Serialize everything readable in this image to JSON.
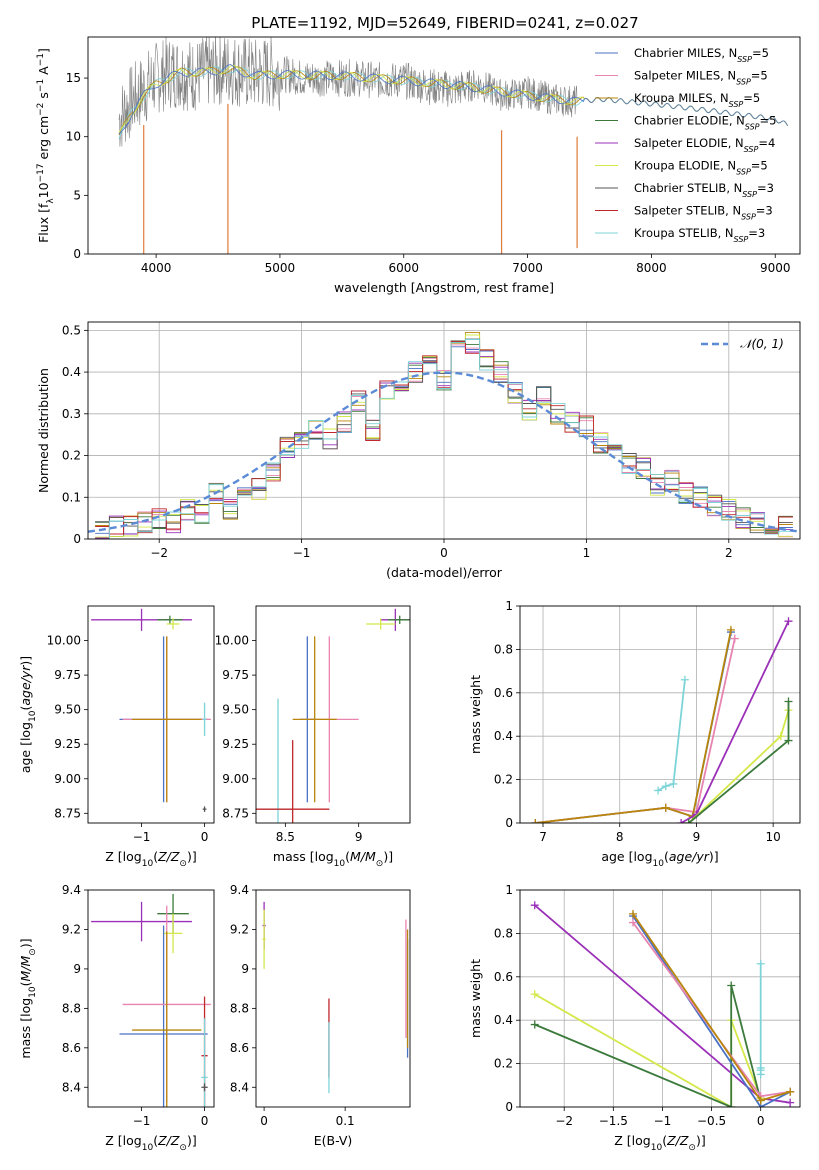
{
  "figure": {
    "title": "PLATE=1192, MJD=52649, FIBERID=0241, z=0.027"
  },
  "series_styles": [
    {
      "name": "Chabrier MILES, N$_{SSP}$=5",
      "label": "Chabrier MILES, N",
      "sub": "SSP",
      "tail": "=5",
      "color": "#4a72c4"
    },
    {
      "name": "Salpeter MILES, N$_{SSP}$=5",
      "label": "Salpeter MILES, N",
      "sub": "SSP",
      "tail": "=5",
      "color": "#e884b0"
    },
    {
      "name": "Kroupa MILES, N$_{SSP}$=5",
      "label": "Kroupa MILES, N",
      "sub": "SSP",
      "tail": "=5",
      "color": "#b8860b"
    },
    {
      "name": "Chabrier ELODIE, N$_{SSP}$=5",
      "label": "Chabrier ELODIE, N",
      "sub": "SSP",
      "tail": "=5",
      "color": "#3b7a3b"
    },
    {
      "name": "Salpeter ELODIE, N$_{SSP}$=4",
      "label": "Salpeter ELODIE, N",
      "sub": "SSP",
      "tail": "=4",
      "color": "#9b30b8"
    },
    {
      "name": "Kroupa ELODIE, N$_{SSP}$=5",
      "label": "Kroupa ELODIE, N",
      "sub": "SSP",
      "tail": "=5",
      "color": "#d4e84a"
    },
    {
      "name": "Chabrier STELIB, N$_{SSP}$=3",
      "label": "Chabrier STELIB, N",
      "sub": "SSP",
      "tail": "=3",
      "color": "#555555"
    },
    {
      "name": "Salpeter STELIB, N$_{SSP}$=3",
      "label": "Salpeter STELIB, N",
      "sub": "SSP",
      "tail": "=3",
      "color": "#c0282d"
    },
    {
      "name": "Kroupa STELIB, N$_{SSP}$=3",
      "label": "Kroupa STELIB, N",
      "sub": "SSP",
      "tail": "=3",
      "color": "#7dd4d8"
    }
  ],
  "chart_data": [
    {
      "id": "spectrum",
      "type": "line",
      "xlabel": "wavelength [Angstrom, rest frame]",
      "ylabel": "Flux [f$_\\lambda$10$^{-17}$ erg cm$^{-2}$ s$^{-1}$ A$^{-1}$]",
      "xlim": [
        3450,
        9200
      ],
      "ylim": [
        0,
        18.5
      ],
      "xticks": [
        4000,
        5000,
        6000,
        7000,
        8000,
        9000
      ],
      "yticks": [
        0,
        5,
        10,
        15
      ],
      "data_series": {
        "name": "data",
        "color": "#808080",
        "x": [
          3700,
          3800,
          3900,
          4000,
          4100,
          4200,
          4300,
          4400,
          4500,
          4600,
          4700,
          4800,
          4900,
          5000,
          5200,
          5400,
          5600,
          5800,
          6000,
          6200,
          6400,
          6600,
          6800,
          7000,
          7200,
          7400
        ],
        "y": [
          11.5,
          13,
          14,
          15,
          15.5,
          15.5,
          15.2,
          15.5,
          15.8,
          15.8,
          15.5,
          15.3,
          15.5,
          15.4,
          15,
          15,
          15,
          14.8,
          14.8,
          14.3,
          14,
          14.5,
          13.5,
          13.8,
          13.2,
          13
        ]
      },
      "model_series": {
        "name": "models",
        "color": "#7dd4d8",
        "x": [
          3700,
          3800,
          3900,
          4000,
          4200,
          4400,
          4600,
          4800,
          5000,
          5500,
          6000,
          6500,
          7000,
          7400,
          7600,
          8000,
          8500,
          9000,
          9100
        ],
        "y": [
          10,
          12,
          13.5,
          14.5,
          15.5,
          15.5,
          15.8,
          15.2,
          15.3,
          15.2,
          14.8,
          14.3,
          13.5,
          13.0,
          13.2,
          12.8,
          12.2,
          11.5,
          11.0
        ]
      },
      "dips": [
        {
          "x": 3900,
          "y": 0
        },
        {
          "x": 4580,
          "y": 0
        },
        {
          "x": 6790,
          "y": 0
        },
        {
          "x": 7400,
          "y": 0.5
        }
      ],
      "legend": "upper right"
    },
    {
      "id": "residuals",
      "type": "line",
      "xlabel": "(data-model)/error",
      "ylabel": "Normed distribution",
      "xlim": [
        -2.5,
        2.5
      ],
      "ylim": [
        0,
        0.52
      ],
      "xticks": [
        -2,
        -1,
        0,
        1,
        2
      ],
      "yticks": [
        0.0,
        0.1,
        0.2,
        0.3,
        0.4,
        0.5
      ],
      "grid": true,
      "gaussian": {
        "name": "$\\mathcal{N}(0, 1)$",
        "label": "𝒩(0, 1)",
        "color": "#5b8bd6",
        "style": "dashed"
      },
      "hist_bin_centers": [
        -2.4,
        -2.3,
        -2.2,
        -2.1,
        -2.0,
        -1.9,
        -1.8,
        -1.7,
        -1.6,
        -1.5,
        -1.4,
        -1.3,
        -1.2,
        -1.1,
        -1.0,
        -0.9,
        -0.8,
        -0.7,
        -0.6,
        -0.5,
        -0.4,
        -0.3,
        -0.2,
        -0.1,
        0.0,
        0.1,
        0.2,
        0.3,
        0.4,
        0.5,
        0.6,
        0.7,
        0.8,
        0.9,
        1.0,
        1.1,
        1.2,
        1.3,
        1.4,
        1.5,
        1.6,
        1.7,
        1.8,
        1.9,
        2.0,
        2.1,
        2.2,
        2.3,
        2.4
      ],
      "hist_values": [
        0.02,
        0.03,
        0.03,
        0.04,
        0.05,
        0.04,
        0.07,
        0.06,
        0.11,
        0.07,
        0.13,
        0.12,
        0.16,
        0.22,
        0.23,
        0.26,
        0.24,
        0.28,
        0.33,
        0.26,
        0.36,
        0.38,
        0.4,
        0.43,
        0.38,
        0.45,
        0.47,
        0.43,
        0.4,
        0.35,
        0.31,
        0.34,
        0.3,
        0.28,
        0.27,
        0.23,
        0.21,
        0.18,
        0.17,
        0.13,
        0.14,
        0.11,
        0.1,
        0.08,
        0.07,
        0.05,
        0.04,
        0.03,
        0.03
      ],
      "legend": "upper right"
    },
    {
      "id": "age-vs-Z",
      "type": "scatter",
      "xlabel": "Z [log$_{10}$($Z/Z_\\odot$)]",
      "ylabel": "age  [log$_{10}$($age/yr$)]",
      "xlim": [
        -1.85,
        0.15
      ],
      "ylim": [
        8.68,
        10.25
      ],
      "xticks": [
        -1,
        0
      ],
      "yticks": [
        8.75,
        9.0,
        9.25,
        9.5,
        9.75,
        10.0
      ],
      "ytick_labels": [
        "8.75",
        "9.00",
        "9.25",
        "9.50",
        "9.75",
        "10.00"
      ],
      "points": [
        {
          "series": 4,
          "x": -1.0,
          "y": 10.15,
          "xerr": 0.8,
          "yerr": 0.08
        },
        {
          "series": 3,
          "x": -0.55,
          "y": 10.15,
          "xerr": 0.2,
          "yerr": 0.03
        },
        {
          "series": 5,
          "x": -0.5,
          "y": 10.12,
          "xerr": 0.1,
          "yerr": 0.04
        },
        {
          "series": 0,
          "x": -0.65,
          "y": 9.43,
          "xerr": 0.7,
          "yerr": 0.6
        },
        {
          "series": 1,
          "x": -0.6,
          "y": 9.43,
          "xerr": 0.7,
          "yerr": 0.6
        },
        {
          "series": 2,
          "x": -0.6,
          "y": 9.43,
          "xerr": 0.55,
          "yerr": 0.6
        },
        {
          "series": 8,
          "x": 0.0,
          "y": 9.43,
          "xerr": 0.03,
          "yerr": 0.12
        },
        {
          "series": 6,
          "x": 0.0,
          "y": 8.78,
          "xerr": 0.03,
          "yerr": 0.02
        }
      ]
    },
    {
      "id": "age-vs-mass",
      "type": "scatter",
      "xlabel": "mass [log$_{10}$($M/M_\\odot$)]",
      "ylabel": "",
      "xlim": [
        8.3,
        9.35
      ],
      "ylim": [
        8.68,
        10.25
      ],
      "xticks": [
        8.5,
        9.0
      ],
      "yticks": [
        8.75,
        9.0,
        9.25,
        9.5,
        9.75,
        10.0
      ],
      "ytick_labels": [
        "8.75",
        "9.00",
        "9.25",
        "9.50",
        "9.75",
        "10.00"
      ],
      "points": [
        {
          "series": 4,
          "x": 9.25,
          "y": 10.15,
          "xerr": 0.1,
          "yerr": 0.08
        },
        {
          "series": 3,
          "x": 9.28,
          "y": 10.15,
          "xerr": 0.08,
          "yerr": 0.03
        },
        {
          "series": 5,
          "x": 9.15,
          "y": 10.12,
          "xerr": 0.1,
          "yerr": 0.04
        },
        {
          "series": 0,
          "x": 8.65,
          "y": 9.43,
          "xerr": 0.05,
          "yerr": 0.6
        },
        {
          "series": 1,
          "x": 8.8,
          "y": 9.43,
          "xerr": 0.2,
          "yerr": 0.6
        },
        {
          "series": 2,
          "x": 8.7,
          "y": 9.43,
          "xerr": 0.15,
          "yerr": 0.6
        },
        {
          "series": 8,
          "x": 8.45,
          "y": 8.78,
          "xerr": 0.1,
          "yerr": 0.8
        },
        {
          "series": 7,
          "x": 8.55,
          "y": 8.78,
          "xerr": 0.25,
          "yerr": 0.5
        }
      ]
    },
    {
      "id": "massweight-vs-age",
      "type": "line",
      "xlabel": "age  [log$_{10}$($age/yr$)]",
      "ylabel": "mass weight",
      "xlim": [
        6.7,
        10.35
      ],
      "ylim": [
        0,
        1.0
      ],
      "xticks": [
        7,
        8,
        9,
        10
      ],
      "yticks": [
        0.0,
        0.2,
        0.4,
        0.6,
        0.8,
        1.0
      ],
      "grid": true,
      "lines": [
        {
          "series": 8,
          "x": [
            8.5,
            8.6,
            8.7,
            8.85
          ],
          "y": [
            0.15,
            0.17,
            0.18,
            0.66
          ]
        },
        {
          "series": 0,
          "x": [
            6.9,
            8.6,
            8.95,
            9.45
          ],
          "y": [
            0.0,
            0.07,
            0.03,
            0.88
          ]
        },
        {
          "series": 1,
          "x": [
            6.9,
            8.6,
            9.0,
            9.5
          ],
          "y": [
            0.0,
            0.07,
            0.05,
            0.85
          ]
        },
        {
          "series": 2,
          "x": [
            6.9,
            8.6,
            8.95,
            9.45
          ],
          "y": [
            0.0,
            0.07,
            0.03,
            0.89
          ]
        },
        {
          "series": 4,
          "x": [
            8.8,
            9.0,
            10.2
          ],
          "y": [
            0.0,
            0.04,
            0.93
          ]
        },
        {
          "series": 5,
          "x": [
            8.9,
            10.1,
            10.2
          ],
          "y": [
            0.0,
            0.4,
            0.52
          ]
        },
        {
          "series": 3,
          "x": [
            8.9,
            10.2,
            10.2
          ],
          "y": [
            0.0,
            0.38,
            0.56
          ]
        }
      ]
    },
    {
      "id": "mass-vs-Z",
      "type": "scatter",
      "xlabel": "Z [log$_{10}$($Z/Z_\\odot$)]",
      "ylabel": "mass [log$_{10}$($M/M_\\odot$)]",
      "xlim": [
        -1.85,
        0.15
      ],
      "ylim": [
        8.3,
        9.4
      ],
      "xticks": [
        -1,
        0
      ],
      "yticks": [
        8.4,
        8.6,
        8.8,
        9.0,
        9.2,
        9.4
      ],
      "points": [
        {
          "series": 4,
          "x": -1.0,
          "y": 9.24,
          "xerr": 0.8,
          "yerr": 0.1
        },
        {
          "series": 3,
          "x": -0.5,
          "y": 9.28,
          "xerr": 0.25,
          "yerr": 0.1
        },
        {
          "series": 5,
          "x": -0.5,
          "y": 9.18,
          "xerr": 0.15,
          "yerr": 0.1
        },
        {
          "series": 0,
          "x": -0.65,
          "y": 8.67,
          "xerr": 0.7,
          "yerr": 0.55
        },
        {
          "series": 1,
          "x": -0.6,
          "y": 8.82,
          "xerr": 0.7,
          "yerr": 0.5
        },
        {
          "series": 2,
          "x": -0.6,
          "y": 8.69,
          "xerr": 0.55,
          "yerr": 0.5
        },
        {
          "series": 7,
          "x": 0.0,
          "y": 8.56,
          "xerr": 0.05,
          "yerr": 0.3
        },
        {
          "series": 8,
          "x": 0.0,
          "y": 8.45,
          "xerr": 0.05,
          "yerr": 0.3
        },
        {
          "series": 6,
          "x": 0.0,
          "y": 8.4,
          "xerr": 0.05,
          "yerr": 0.02
        }
      ]
    },
    {
      "id": "mass-vs-ebv",
      "type": "scatter",
      "xlabel": "E(B-V)",
      "ylabel": "",
      "xlim": [
        -0.01,
        0.18
      ],
      "ylim": [
        8.3,
        9.4
      ],
      "xticks": [
        0.0,
        0.1
      ],
      "yticks": [
        8.4,
        8.6,
        8.8,
        9.0,
        9.2,
        9.4
      ],
      "points": [
        {
          "series": 4,
          "x": 0.0,
          "y": 9.22,
          "xerr": 0.002,
          "yerr": 0.12
        },
        {
          "series": 5,
          "x": 0.0,
          "y": 9.15,
          "xerr": 0.002,
          "yerr": 0.15
        },
        {
          "series": 7,
          "x": 0.08,
          "y": 8.65,
          "xerr": 0.0,
          "yerr": 0.2
        },
        {
          "series": 8,
          "x": 0.08,
          "y": 8.55,
          "xerr": 0.0,
          "yerr": 0.18
        },
        {
          "series": 1,
          "x": 0.175,
          "y": 8.95,
          "xerr": 0.0,
          "yerr": 0.3
        },
        {
          "series": 0,
          "x": 0.177,
          "y": 8.85,
          "xerr": 0.0,
          "yerr": 0.3
        },
        {
          "series": 2,
          "x": 0.177,
          "y": 8.9,
          "xerr": 0.0,
          "yerr": 0.3
        }
      ]
    },
    {
      "id": "massweight-vs-Z",
      "type": "line",
      "xlabel": "Z [log$_{10}$($Z/Z_\\odot$)]",
      "ylabel": "mass weight",
      "xlim": [
        -2.45,
        0.4
      ],
      "ylim": [
        0,
        1.0
      ],
      "xticks": [
        -2.0,
        -1.5,
        -1.0,
        -0.5,
        0.0
      ],
      "yticks": [
        0.0,
        0.2,
        0.4,
        0.6,
        0.8,
        1.0
      ],
      "grid": true,
      "lines": [
        {
          "series": 4,
          "x": [
            -2.3,
            0.0,
            0.3
          ],
          "y": [
            0.93,
            0.04,
            0.02
          ]
        },
        {
          "series": 5,
          "x": [
            -2.3,
            -0.3,
            -0.3,
            0.0
          ],
          "y": [
            0.52,
            0.0,
            0.4,
            0.04
          ]
        },
        {
          "series": 3,
          "x": [
            -2.3,
            -0.3,
            -0.3,
            0.0
          ],
          "y": [
            0.38,
            0.0,
            0.56,
            0.03
          ]
        },
        {
          "series": 0,
          "x": [
            -1.3,
            0.0,
            0.3
          ],
          "y": [
            0.88,
            0.0,
            0.07
          ]
        },
        {
          "series": 1,
          "x": [
            -1.3,
            0.0,
            0.3
          ],
          "y": [
            0.85,
            0.05,
            0.07
          ]
        },
        {
          "series": 2,
          "x": [
            -1.3,
            0.0,
            0.3
          ],
          "y": [
            0.89,
            0.03,
            0.07
          ]
        },
        {
          "series": 8,
          "x": [
            0.0,
            0.0,
            0.0,
            0.0
          ],
          "y": [
            0.66,
            0.18,
            0.15,
            0.17
          ]
        }
      ]
    }
  ]
}
